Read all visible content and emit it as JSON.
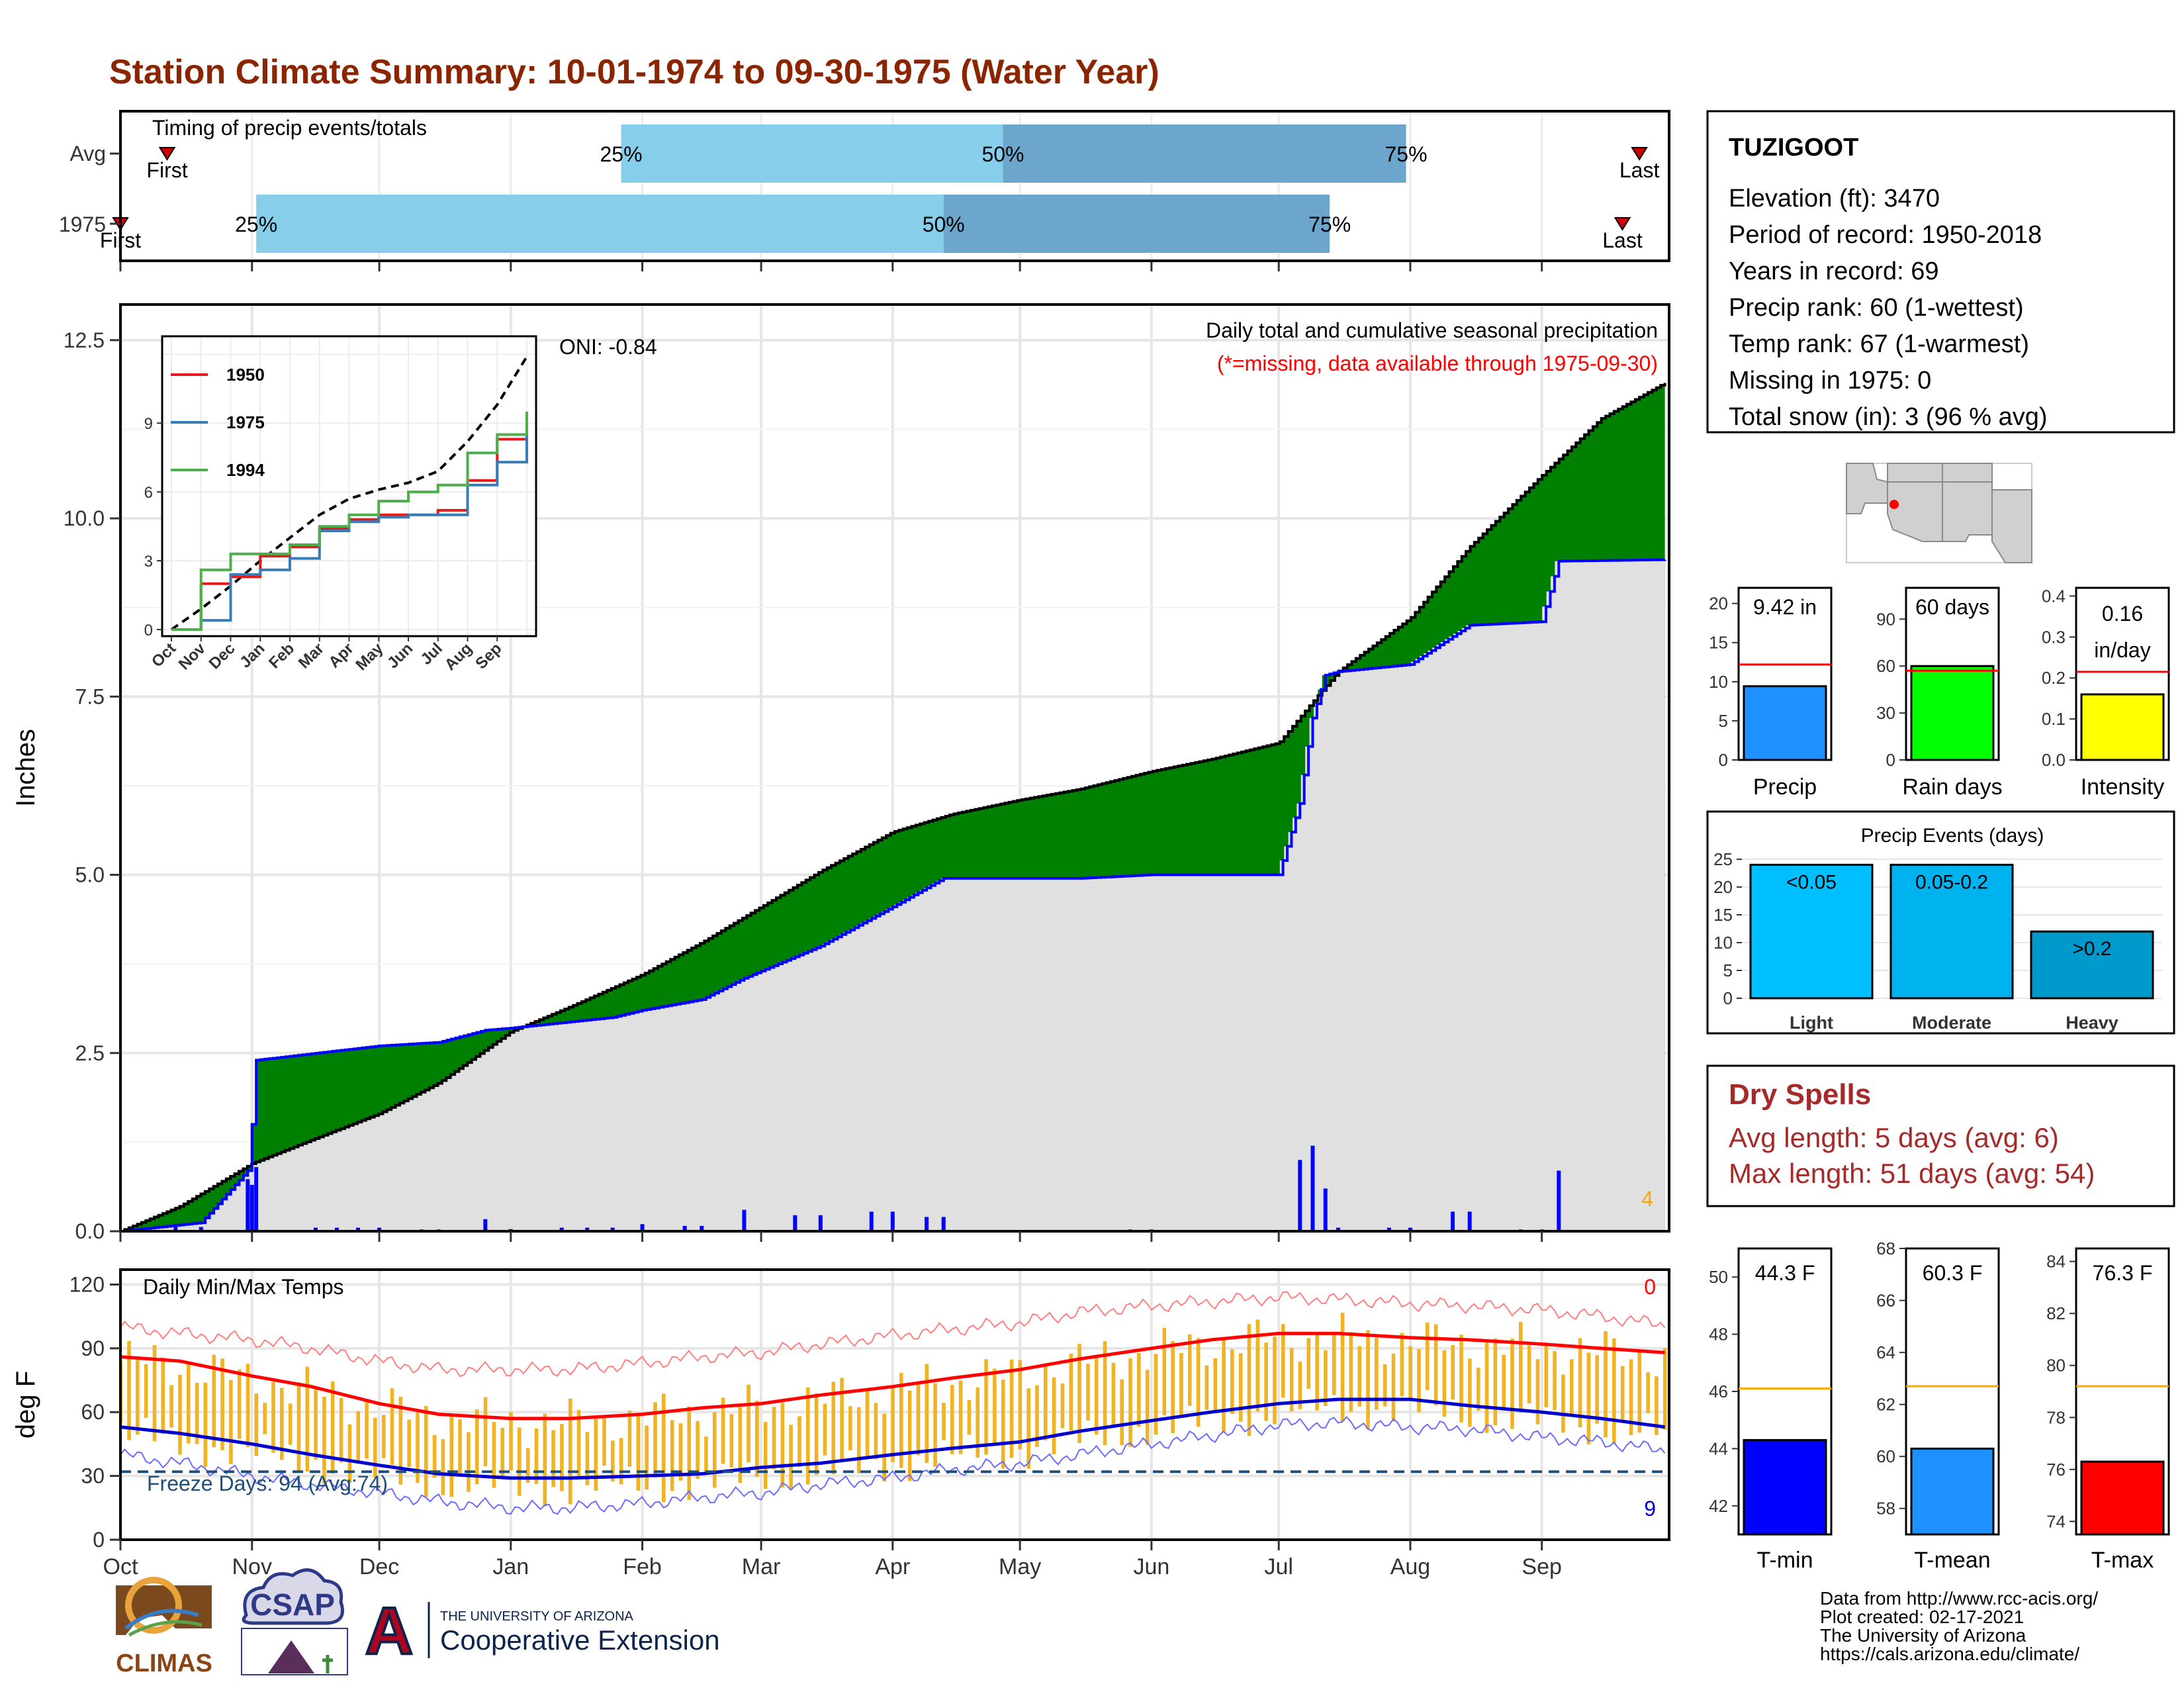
{
  "title": "Station Climate Summary: 10-01-1974 to 09-30-1975 (Water Year)",
  "colors": {
    "title": "#8B2500",
    "cum_fill": "#8B5A00",
    "green_fill": "#008000",
    "avg_fill": "#E0E0E0",
    "precip_line": "#0000FF",
    "timing_light": "#87CEEB",
    "timing_dark": "#6CA6CD",
    "tmax_avg": "#FF0000",
    "tmin_avg": "#0000CD",
    "temp_bar": "#F0B323",
    "freeze": "#1F4E79",
    "precip_bar": "#1E90FF",
    "raindays_bar": "#00FF00",
    "intensity_bar": "#FFFF00",
    "events_light": "#00BFFF",
    "events_mod": "#00B2EE",
    "events_heavy": "#0099CC",
    "tmin_bar": "#0000FF",
    "tmean_bar": "#1E90FF",
    "tmax_bar": "#FF0000",
    "dry_spell": "#A52A2A"
  },
  "timing": {
    "title": "Timing of precip events/totals",
    "rows": [
      {
        "label": "Avg",
        "first_label": "First",
        "last_label": "Last",
        "p25_label": "25%",
        "p50_label": "50%",
        "p75_label": "75%",
        "first": "10-12",
        "p25": "01-27",
        "p50": "04-27",
        "p75": "07-31",
        "last": "09-24"
      },
      {
        "label": "1975",
        "first_label": "First",
        "last_label": "Last",
        "p25_label": "25%",
        "p50_label": "50%",
        "p75_label": "75%",
        "first": "10-01",
        "p25": "11-02",
        "p50": "04-13",
        "p75": "07-13",
        "last": "09-20"
      }
    ]
  },
  "precip_panel": {
    "ylabel": "Inches",
    "header": "Daily total and cumulative seasonal precipitation",
    "subheader": "(*=missing, data available through 1975-09-30)",
    "oni": "ONI: -0.84",
    "corner_value": "4",
    "y_ticks": [
      "0.0",
      "2.5",
      "5.0",
      "7.5",
      "10.0",
      "12.5"
    ]
  },
  "inset": {
    "y_ticks": [
      "0",
      "3",
      "6",
      "9"
    ],
    "x_ticks": [
      "Oct",
      "Nov",
      "Dec",
      "Jan",
      "Feb",
      "Mar",
      "Apr",
      "May",
      "Jun",
      "Jul",
      "Aug",
      "Sep"
    ],
    "legend": [
      {
        "name": "1950",
        "color": "#E41A1C"
      },
      {
        "name": "1975",
        "color": "#377EB8"
      },
      {
        "name": "1994",
        "color": "#4DAF4A"
      }
    ]
  },
  "temp_panel": {
    "ylabel": "deg F",
    "header": "Daily Min/Max Temps",
    "freeze_label": "Freeze Days: 94 (Avg:74)",
    "top_right": "0",
    "bottom_right": "9",
    "y_ticks": [
      "0",
      "30",
      "60",
      "90",
      "120"
    ],
    "x_ticks": [
      "Oct",
      "Nov",
      "Dec",
      "Jan",
      "Feb",
      "Mar",
      "Apr",
      "May",
      "Jun",
      "Jul",
      "Aug",
      "Sep"
    ]
  },
  "station": {
    "name": "TUZIGOOT",
    "lines": [
      "Elevation (ft): 3470",
      "Period of record: 1950-2018",
      "Years in record: 69",
      "Precip rank: 60 (1-wettest)",
      "Temp rank: 67 (1-warmest)",
      "Missing in 1975: 0",
      "Total snow (in): 3 (96 % avg)"
    ]
  },
  "mini_charts": [
    {
      "label": "Precip",
      "value_label": "9.42 in",
      "y_ticks": [
        "0",
        "5",
        "10",
        "15",
        "20"
      ]
    },
    {
      "label": "Rain days",
      "value_label": "60 days",
      "y_ticks": [
        "0",
        "30",
        "60",
        "90"
      ]
    },
    {
      "label": "Intensity",
      "value_label": "0.16\nin/day",
      "value_label_1": "0.16",
      "value_label_2": "in/day",
      "y_ticks": [
        "0.0",
        "0.1",
        "0.2",
        "0.3",
        "0.4"
      ]
    }
  ],
  "events": {
    "title": "Precip Events (days)",
    "y_ticks": [
      "0",
      "5",
      "10",
      "15",
      "20",
      "25"
    ],
    "bars": [
      {
        "category": "Light",
        "label": "<0.05"
      },
      {
        "category": "Moderate",
        "label": "0.05-0.2"
      },
      {
        "category": "Heavy",
        "label": ">0.2"
      }
    ]
  },
  "dry_spells": {
    "title": "Dry Spells",
    "avg": "Avg length: 5 days (avg: 6)",
    "max": "Max length: 51 days (avg: 54)"
  },
  "temp_bars": [
    {
      "label": "T-min",
      "value_label": "44.3 F",
      "y_ticks": [
        "42",
        "44",
        "46",
        "48",
        "50"
      ]
    },
    {
      "label": "T-mean",
      "value_label": "60.3 F",
      "y_ticks": [
        "58",
        "60",
        "62",
        "64",
        "66",
        "68"
      ]
    },
    {
      "label": "T-max",
      "value_label": "76.3 F",
      "y_ticks": [
        "74",
        "76",
        "78",
        "80",
        "82",
        "84"
      ]
    }
  ],
  "credits": [
    "Data from http://www.rcc-acis.org/",
    "Plot created: 02-17-2021",
    "The University of Arizona",
    "https://cals.arizona.edu/climate/"
  ],
  "logos": {
    "climas": "CLIMAS",
    "csap": "CSAP",
    "ua_small": "THE UNIVERSITY OF ARIZONA",
    "ua_big": "Cooperative Extension",
    "ua_letter": "A"
  },
  "chart_data": [
    {
      "type": "area",
      "title": "Daily total and cumulative seasonal precipitation",
      "ylabel": "Inches",
      "ylim": [
        0,
        13
      ],
      "x_range": [
        "1974-10-01",
        "1975-09-30"
      ],
      "series": [
        {
          "name": "",
          "x": [
            "10-01",
            "10-15",
            "11-01",
            "11-15",
            "12-01",
            "12-15",
            "01-01",
            "01-15",
            "02-01",
            "02-15",
            "03-01",
            "03-15",
            "04-01",
            "04-15",
            "05-01",
            "05-15",
            "06-01",
            "06-15",
            "07-01",
            "07-10",
            "07-15",
            "08-01",
            "08-15",
            "09-01",
            "09-15",
            "09-30"
          ],
          "values": [
            0.0,
            0.35,
            0.95,
            1.28,
            1.65,
            2.08,
            2.8,
            3.15,
            3.6,
            4.05,
            4.55,
            5.05,
            5.6,
            5.85,
            6.05,
            6.2,
            6.45,
            6.62,
            6.85,
            7.5,
            7.85,
            8.6,
            9.6,
            10.6,
            11.4,
            11.9
          ]
        },
        {
          "name": "",
          "x": [
            "10-01",
            "10-20",
            "10-31",
            "11-01",
            "11-02",
            "12-01",
            "12-15",
            "12-26",
            "01-01",
            "01-25",
            "02-01",
            "02-15",
            "02-25",
            "03-15",
            "04-01",
            "04-13",
            "05-01",
            "05-15",
            "06-01",
            "06-15",
            "07-01",
            "07-06",
            "07-09",
            "07-12",
            "07-15",
            "08-01",
            "08-15",
            "09-01",
            "09-05",
            "09-30"
          ],
          "values": [
            0.0,
            0.12,
            0.85,
            1.5,
            2.4,
            2.6,
            2.65,
            2.82,
            2.85,
            3.0,
            3.1,
            3.25,
            3.55,
            4.0,
            4.55,
            4.95,
            4.95,
            4.95,
            5.0,
            5.0,
            5.0,
            6.0,
            7.2,
            7.8,
            7.85,
            7.95,
            8.5,
            8.55,
            9.4,
            9.42
          ]
        }
      ]
    },
    {
      "type": "line",
      "title": "",
      "ylim": [
        0,
        12.5
      ],
      "x": [
        "Oct",
        "Nov",
        "Dec",
        "Jan",
        "Feb",
        "Mar",
        "Apr",
        "May",
        "Jun",
        "Jul",
        "Aug",
        "Sep",
        "Sep-end"
      ],
      "series": [
        {
          "name": "",
          "values": [
            0.0,
            0.9,
            1.9,
            3.0,
            4.0,
            5.0,
            5.7,
            6.1,
            6.4,
            6.9,
            8.2,
            9.8,
            11.9
          ]
        },
        {
          "name": "1950",
          "values": [
            0.0,
            2.0,
            2.3,
            3.2,
            3.6,
            4.4,
            4.8,
            5.0,
            5.0,
            5.2,
            6.5,
            8.3,
            8.8
          ]
        },
        {
          "name": "1975",
          "values": [
            0.0,
            0.4,
            2.4,
            2.6,
            3.1,
            4.3,
            4.7,
            4.9,
            5.0,
            5.0,
            6.3,
            7.3,
            8.8
          ]
        },
        {
          "name": "1994",
          "values": [
            0.0,
            2.6,
            3.3,
            3.3,
            3.7,
            4.5,
            5.0,
            5.6,
            6.0,
            6.3,
            7.7,
            8.5,
            9.5
          ]
        }
      ]
    },
    {
      "type": "line",
      "title": "Daily Min/Max Temps",
      "ylabel": "deg F",
      "ylim": [
        0,
        120
      ],
      "x": [
        "10-01",
        "10-15",
        "11-01",
        "11-15",
        "12-01",
        "12-15",
        "01-01",
        "01-15",
        "02-01",
        "02-15",
        "03-01",
        "03-15",
        "04-01",
        "04-15",
        "05-01",
        "05-15",
        "06-01",
        "06-15",
        "07-01",
        "07-15",
        "08-01",
        "08-15",
        "09-01",
        "09-15",
        "09-30"
      ],
      "series": [
        {
          "name": "",
          "values": [
            86,
            84,
            77,
            72,
            64,
            59,
            57,
            57,
            59,
            62,
            64,
            68,
            72,
            76,
            80,
            85,
            90,
            94,
            97,
            97,
            95,
            94,
            92,
            90,
            88
          ]
        },
        {
          "name": "",
          "values": [
            53,
            50,
            45,
            40,
            35,
            31,
            29,
            29,
            30,
            31,
            34,
            36,
            40,
            43,
            46,
            51,
            56,
            60,
            64,
            66,
            66,
            63,
            60,
            57,
            53
          ]
        },
        {
          "name": "",
          "values": [
            100,
            97,
            94,
            90,
            84,
            80,
            80,
            80,
            83,
            86,
            88,
            92,
            96,
            99,
            102,
            107,
            110,
            112,
            114,
            113,
            111,
            110,
            108,
            105,
            101
          ]
        },
        {
          "name": "",
          "values": [
            40,
            36,
            30,
            26,
            22,
            18,
            15,
            15,
            17,
            20,
            22,
            26,
            29,
            33,
            36,
            40,
            45,
            49,
            54,
            55,
            53,
            52,
            48,
            46,
            42
          ]
        }
      ],
      "freeze_line": 32
    },
    {
      "type": "bar",
      "categories": [
        "Precip",
        "Rain days",
        "Intensity"
      ],
      "values": [
        9.42,
        60,
        0.16
      ],
      "averages": [
        12.2,
        57,
        0.215
      ],
      "ylims": [
        [
          0,
          22
        ],
        [
          0,
          110
        ],
        [
          0,
          0.42
        ]
      ]
    },
    {
      "type": "bar",
      "title": "Precip Events (days)",
      "categories": [
        "Light",
        "Moderate",
        "Heavy"
      ],
      "values": [
        24,
        24,
        12
      ],
      "ylim": [
        0,
        25
      ]
    },
    {
      "type": "bar",
      "categories": [
        "T-min",
        "T-mean",
        "T-max"
      ],
      "values": [
        44.3,
        60.3,
        76.3
      ],
      "averages": [
        46.1,
        62.7,
        79.2
      ],
      "ylims": [
        [
          41,
          51
        ],
        [
          57,
          68
        ],
        [
          73.5,
          84.5
        ]
      ]
    }
  ]
}
